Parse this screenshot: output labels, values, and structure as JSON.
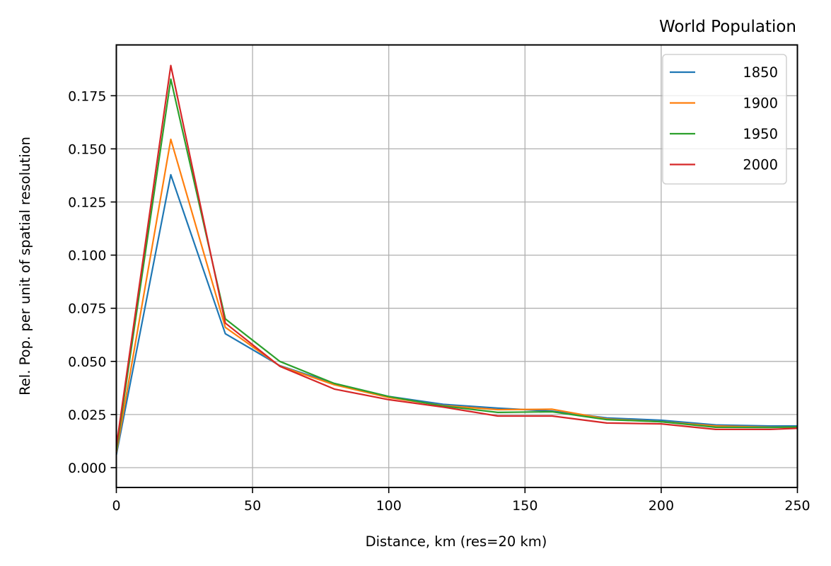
{
  "chart_data": {
    "type": "line",
    "title": "World Population",
    "xlabel": "Distance, km (res=20 km)",
    "ylabel": "Rel. Pop. per unit of spatial resolution",
    "xlim": [
      0,
      250
    ],
    "ylim": [
      -0.009,
      0.198
    ],
    "xticks": [
      0,
      50,
      100,
      150,
      200,
      250
    ],
    "xtick_labels": [
      "0",
      "50",
      "100",
      "150",
      "200",
      "250"
    ],
    "yticks": [
      0.0,
      0.025,
      0.05,
      0.075,
      0.1,
      0.125,
      0.15,
      0.175
    ],
    "ytick_labels": [
      "0.000",
      "0.025",
      "0.050",
      "0.075",
      "0.100",
      "0.125",
      "0.150",
      "0.175"
    ],
    "grid": true,
    "legend_position": "upper right",
    "x": [
      0,
      20,
      40,
      60,
      80,
      100,
      120,
      140,
      160,
      180,
      200,
      220,
      240,
      250
    ],
    "series": [
      {
        "name": "1850",
        "color": "#1f77b4",
        "values": [
          0.006,
          0.1378,
          0.063,
          0.048,
          0.0396,
          0.0335,
          0.0298,
          0.028,
          0.0266,
          0.0234,
          0.0223,
          0.0201,
          0.0196,
          0.0196
        ]
      },
      {
        "name": "1900",
        "color": "#ff7f0e",
        "values": [
          0.007,
          0.1545,
          0.066,
          0.0478,
          0.039,
          0.033,
          0.0292,
          0.0273,
          0.0275,
          0.0229,
          0.0216,
          0.0196,
          0.019,
          0.019
        ]
      },
      {
        "name": "1950",
        "color": "#2ca02c",
        "values": [
          0.008,
          0.1828,
          0.07,
          0.05,
          0.0396,
          0.0335,
          0.029,
          0.026,
          0.0263,
          0.0226,
          0.0216,
          0.019,
          0.0189,
          0.0192
        ]
      },
      {
        "name": "2000",
        "color": "#d62728",
        "values": [
          0.01,
          0.1892,
          0.068,
          0.0477,
          0.037,
          0.032,
          0.0285,
          0.0243,
          0.0243,
          0.021,
          0.0206,
          0.018,
          0.018,
          0.0185
        ]
      }
    ]
  }
}
